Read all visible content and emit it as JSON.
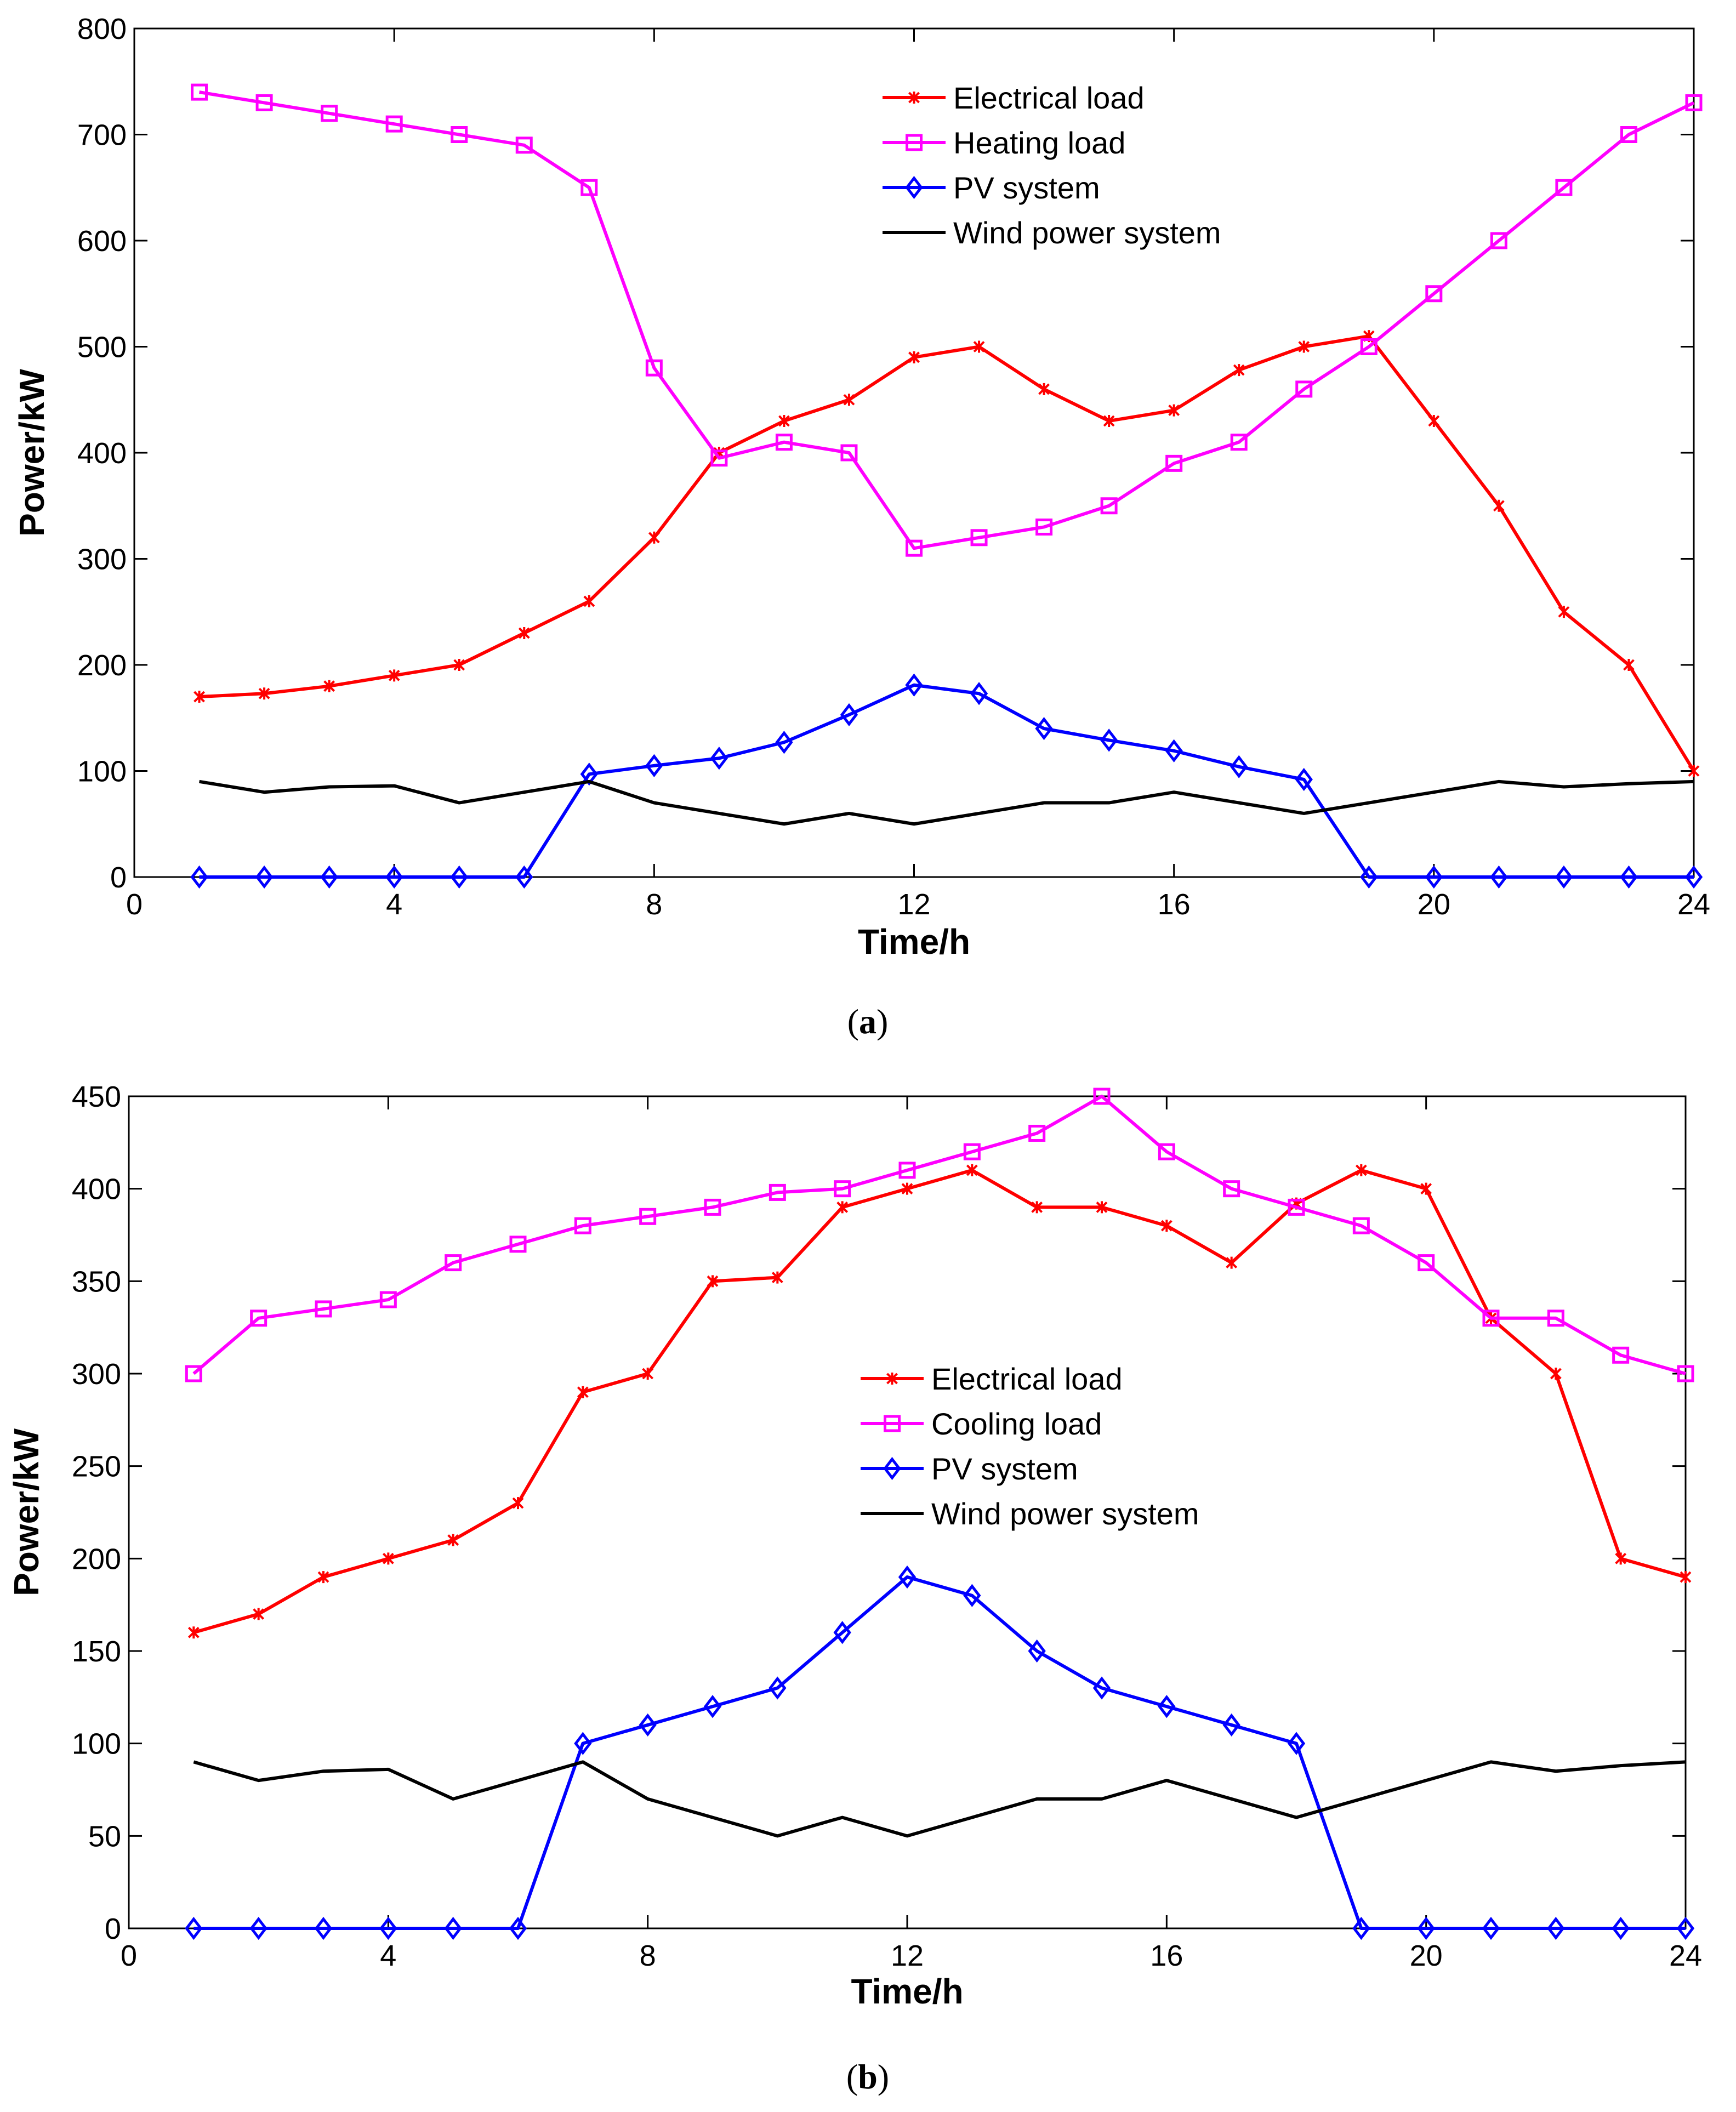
{
  "chart_data": [
    {
      "type": "line",
      "panel_label": "a",
      "xlabel": "Time/h",
      "ylabel": "Power/kW",
      "xlim": [
        0,
        24
      ],
      "ylim": [
        0,
        800
      ],
      "xticks": [
        0,
        4,
        8,
        12,
        16,
        20,
        24
      ],
      "yticks": [
        0,
        100,
        200,
        300,
        400,
        500,
        600,
        700,
        800
      ],
      "x": [
        1,
        2,
        3,
        4,
        5,
        6,
        7,
        8,
        9,
        10,
        11,
        12,
        13,
        14,
        15,
        16,
        17,
        18,
        19,
        20,
        21,
        22,
        23,
        24
      ],
      "legend_position": "top-center",
      "series": [
        {
          "name": "Electrical load",
          "color": "#ff0000",
          "marker": "star",
          "values": [
            170,
            173,
            180,
            190,
            200,
            230,
            260,
            320,
            400,
            430,
            450,
            490,
            500,
            460,
            430,
            440,
            478,
            500,
            510,
            430,
            350,
            250,
            200,
            100
          ]
        },
        {
          "name": "Heating load",
          "color": "#ff00ff",
          "marker": "square",
          "values": [
            740,
            730,
            720,
            710,
            700,
            690,
            650,
            480,
            395,
            410,
            400,
            310,
            320,
            330,
            350,
            390,
            410,
            460,
            500,
            550,
            600,
            650,
            700,
            730
          ]
        },
        {
          "name": "PV system",
          "color": "#0000ff",
          "marker": "diamond",
          "values": [
            0,
            0,
            0,
            0,
            0,
            0,
            97,
            105,
            112,
            127,
            153,
            181,
            173,
            140,
            129,
            119,
            104,
            92,
            0,
            0,
            0,
            0,
            0,
            0
          ]
        },
        {
          "name": "Wind power system",
          "color": "#000000",
          "marker": "none",
          "values": [
            90,
            80,
            85,
            86,
            70,
            80,
            90,
            70,
            60,
            50,
            60,
            50,
            60,
            70,
            70,
            80,
            70,
            60,
            70,
            80,
            90,
            85,
            88,
            90
          ]
        }
      ]
    },
    {
      "type": "line",
      "panel_label": "b",
      "xlabel": "Time/h",
      "ylabel": "Power/kW",
      "xlim": [
        0,
        24
      ],
      "ylim": [
        0,
        450
      ],
      "xticks": [
        0,
        4,
        8,
        12,
        16,
        20,
        24
      ],
      "yticks": [
        0,
        50,
        100,
        150,
        200,
        250,
        300,
        350,
        400,
        450
      ],
      "x": [
        1,
        2,
        3,
        4,
        5,
        6,
        7,
        8,
        9,
        10,
        11,
        12,
        13,
        14,
        15,
        16,
        17,
        18,
        19,
        20,
        21,
        22,
        23,
        24
      ],
      "legend_position": "center",
      "series": [
        {
          "name": "Electrical load",
          "color": "#ff0000",
          "marker": "star",
          "values": [
            160,
            170,
            190,
            200,
            210,
            230,
            290,
            300,
            350,
            352,
            390,
            400,
            410,
            390,
            390,
            380,
            360,
            392,
            410,
            400,
            330,
            300,
            200,
            190
          ]
        },
        {
          "name": "Cooling load",
          "color": "#ff00ff",
          "marker": "square",
          "values": [
            300,
            330,
            335,
            340,
            360,
            370,
            380,
            385,
            390,
            398,
            400,
            410,
            420,
            430,
            450,
            420,
            400,
            390,
            380,
            360,
            330,
            330,
            310,
            300
          ]
        },
        {
          "name": "PV system",
          "color": "#0000ff",
          "marker": "diamond",
          "values": [
            0,
            0,
            0,
            0,
            0,
            0,
            100,
            110,
            120,
            130,
            160,
            190,
            180,
            150,
            130,
            120,
            110,
            100,
            0,
            0,
            0,
            0,
            0,
            0
          ]
        },
        {
          "name": "Wind power system",
          "color": "#000000",
          "marker": "none",
          "values": [
            90,
            80,
            85,
            86,
            70,
            80,
            90,
            70,
            60,
            50,
            60,
            50,
            60,
            70,
            70,
            80,
            70,
            60,
            70,
            80,
            90,
            85,
            88,
            90
          ]
        }
      ]
    }
  ]
}
